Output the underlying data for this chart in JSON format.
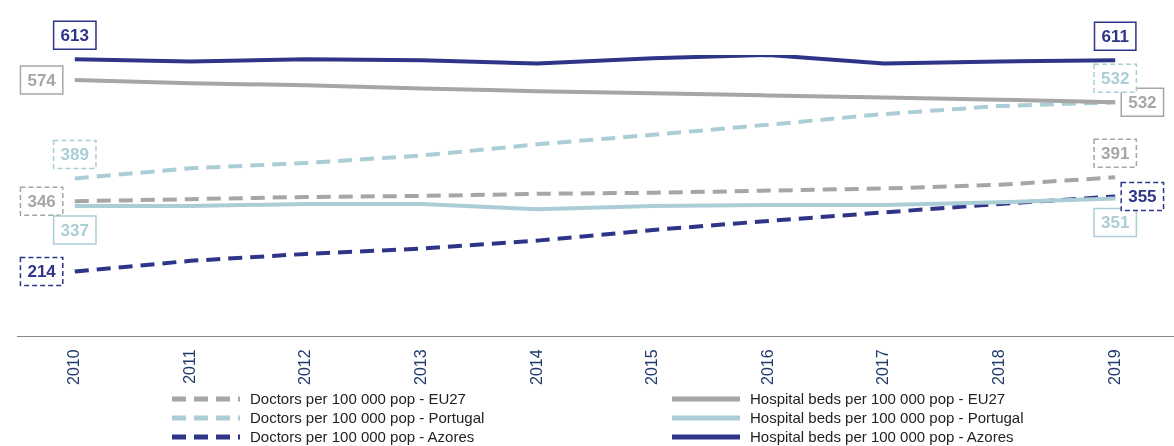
{
  "chart_data": {
    "type": "line",
    "categories": [
      "2010",
      "2011",
      "2012",
      "2013",
      "2014",
      "2015",
      "2016",
      "2017",
      "2018",
      "2019"
    ],
    "series": [
      {
        "name": "Doctors per 100 000 pop - EU27",
        "color": "#a6a6a6",
        "line_style": "dashed",
        "values": [
          346,
          350,
          354,
          356,
          360,
          362,
          366,
          370,
          377,
          391
        ],
        "value_labels": [
          "346",
          null,
          null,
          null,
          null,
          null,
          null,
          null,
          null,
          "391"
        ]
      },
      {
        "name": "Hospital beds per 100 000 pop - EU27",
        "color": "#a6a6a6",
        "line_style": "solid",
        "values": [
          574,
          568,
          564,
          558,
          553,
          549,
          545,
          541,
          537,
          532
        ],
        "value_labels": [
          "574",
          null,
          null,
          null,
          null,
          null,
          null,
          null,
          null,
          "532"
        ]
      },
      {
        "name": "Doctors per 100 000 pop - Portugal",
        "color": "#aacdd6",
        "line_style": "dashed",
        "values": [
          389,
          408,
          418,
          432,
          453,
          471,
          490,
          510,
          525,
          532
        ],
        "value_labels": [
          "389",
          null,
          null,
          null,
          null,
          null,
          null,
          null,
          null,
          "532"
        ]
      },
      {
        "name": "Hospital beds per 100 000 pop - Portugal",
        "color": "#aacdd6",
        "line_style": "solid",
        "values": [
          337,
          337,
          341,
          341,
          331,
          337,
          339,
          339,
          344,
          351
        ],
        "value_labels": [
          "337",
          null,
          null,
          null,
          null,
          null,
          null,
          null,
          null,
          "351"
        ]
      },
      {
        "name": "Doctors per 100 000 pop - Azores",
        "color": "#2e3589",
        "line_style": "dashed",
        "values": [
          214,
          234,
          247,
          257,
          272,
          292,
          309,
          325,
          341,
          355
        ],
        "value_labels": [
          "214",
          null,
          null,
          null,
          null,
          null,
          null,
          null,
          null,
          "355"
        ]
      },
      {
        "name": "Hospital beds per 100 000 pop - Azores",
        "color": "#2e3589",
        "line_style": "solid",
        "values": [
          613,
          609,
          613,
          611,
          605,
          615,
          621,
          605,
          609,
          611
        ],
        "value_labels": [
          "613",
          null,
          null,
          null,
          null,
          null,
          null,
          null,
          null,
          "611"
        ]
      }
    ],
    "legend": "bottom",
    "grid": false,
    "marker": "none"
  }
}
